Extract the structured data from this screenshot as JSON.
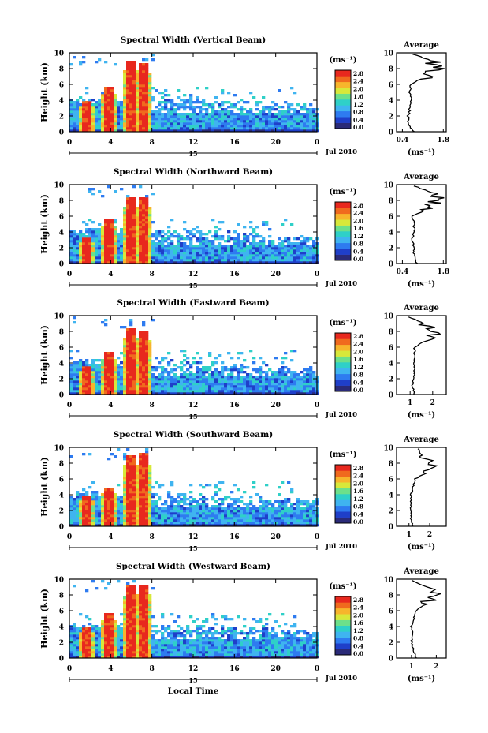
{
  "figure": {
    "panels": [
      {
        "title": "Spectral Width (Vertical Beam)"
      },
      {
        "title": "Spectral Width (Northward Beam)"
      },
      {
        "title": "Spectral Width (Eastward Beam)"
      },
      {
        "title": "Spectral Width (Southward Beam)"
      },
      {
        "title": "Spectral Width (Westward Beam)"
      }
    ],
    "ylabel": "Height (km)",
    "xlabel": "Local Time",
    "date_label": "Jul 2010",
    "day_label": "15",
    "colorbar_unit": "(ms⁻¹)",
    "colorbar_ticks": [
      "0.0",
      "0.4",
      "0.8",
      "1.2",
      "1.6",
      "2.0",
      "2.4",
      "2.8"
    ],
    "x_ticks": [
      "0",
      "4",
      "8",
      "12",
      "16",
      "20",
      "0"
    ],
    "y_ticks": [
      "0",
      "2",
      "4",
      "6",
      "8",
      "10"
    ],
    "avg_title": "Average",
    "avg_xlabel": "(ms⁻¹)",
    "avg_ticks": [
      [
        "0.4",
        "1.8"
      ],
      [
        "0.4",
        "1.8"
      ],
      [
        "1",
        "2"
      ],
      [
        "1",
        "2"
      ],
      [
        "1",
        "2"
      ]
    ],
    "colors": {
      "colormap": [
        "#2a2a78",
        "#1f3fc9",
        "#2e7bf0",
        "#3fb4f0",
        "#2fd0c8",
        "#6de08a",
        "#d8e83a",
        "#f7b52c",
        "#f06a1e",
        "#e8281e"
      ]
    }
  },
  "chart_data": [
    {
      "type": "heatmap",
      "beam": "Vertical",
      "x_range_hours": [
        0,
        24
      ],
      "y_range_km": [
        0,
        10
      ],
      "value_range": [
        0.0,
        3.0
      ],
      "convective_cells": [
        {
          "time": 1.6,
          "top_km": 4.2
        },
        {
          "time": 3.6,
          "top_km": 6.0
        },
        {
          "time": 5.8,
          "top_km": 9.2
        },
        {
          "time": 7.0,
          "top_km": 9.0
        }
      ],
      "average_profile": {
        "xlim": [
          0.2,
          1.9
        ],
        "height_km": [
          0,
          1,
          2,
          3,
          4,
          5,
          6,
          7,
          8,
          9,
          10
        ],
        "width": [
          0.8,
          0.6,
          0.6,
          0.65,
          0.7,
          0.65,
          0.7,
          1.2,
          1.6,
          1.4,
          0.6
        ]
      }
    },
    {
      "type": "heatmap",
      "beam": "Northward",
      "x_range_hours": [
        0,
        24
      ],
      "y_range_km": [
        0,
        10
      ],
      "value_range": [
        0.0,
        3.0
      ],
      "convective_cells": [
        {
          "time": 1.6,
          "top_km": 3.5
        },
        {
          "time": 3.6,
          "top_km": 5.7
        },
        {
          "time": 5.8,
          "top_km": 8.5
        },
        {
          "time": 7.0,
          "top_km": 8.6
        }
      ],
      "average_profile": {
        "xlim": [
          0.2,
          1.9
        ],
        "height_km": [
          0,
          1,
          2,
          3,
          4,
          5,
          6,
          7,
          8,
          9,
          10
        ],
        "width": [
          0.9,
          0.8,
          0.8,
          0.75,
          0.8,
          0.8,
          0.75,
          1.3,
          1.6,
          1.4,
          0.7
        ]
      }
    },
    {
      "type": "heatmap",
      "beam": "Eastward",
      "x_range_hours": [
        0,
        24
      ],
      "y_range_km": [
        0,
        10
      ],
      "value_range": [
        0.0,
        3.0
      ],
      "convective_cells": [
        {
          "time": 1.6,
          "top_km": 3.8
        },
        {
          "time": 3.6,
          "top_km": 5.5
        },
        {
          "time": 5.8,
          "top_km": 8.5
        },
        {
          "time": 7.0,
          "top_km": 8.2
        }
      ],
      "average_profile": {
        "xlim": [
          0.4,
          2.6
        ],
        "height_km": [
          0,
          1,
          2,
          3,
          4,
          5,
          6,
          7,
          8,
          9,
          10
        ],
        "width": [
          1.2,
          1.1,
          1.15,
          1.2,
          1.15,
          1.2,
          1.2,
          1.8,
          2.2,
          1.6,
          0.8
        ]
      }
    },
    {
      "type": "heatmap",
      "beam": "Southward",
      "x_range_hours": [
        0,
        24
      ],
      "y_range_km": [
        0,
        10
      ],
      "value_range": [
        0.0,
        3.0
      ],
      "convective_cells": [
        {
          "time": 1.6,
          "top_km": 4.0
        },
        {
          "time": 3.6,
          "top_km": 5.0
        },
        {
          "time": 5.8,
          "top_km": 9.3
        },
        {
          "time": 7.0,
          "top_km": 9.4
        }
      ],
      "average_profile": {
        "xlim": [
          0.4,
          2.8
        ],
        "height_km": [
          0,
          1,
          2,
          3,
          4,
          5,
          6,
          7,
          8,
          9,
          10
        ],
        "width": [
          1.2,
          1.1,
          1.1,
          1.1,
          1.1,
          1.2,
          1.3,
          2.0,
          2.2,
          1.6,
          1.4
        ]
      }
    },
    {
      "type": "heatmap",
      "beam": "Westward",
      "x_range_hours": [
        0,
        24
      ],
      "y_range_km": [
        0,
        10
      ],
      "value_range": [
        0.0,
        3.0
      ],
      "convective_cells": [
        {
          "time": 1.6,
          "top_km": 4.2
        },
        {
          "time": 3.6,
          "top_km": 5.8
        },
        {
          "time": 5.8,
          "top_km": 9.4
        },
        {
          "time": 7.0,
          "top_km": 9.6
        }
      ],
      "average_profile": {
        "xlim": [
          0.4,
          2.4
        ],
        "height_km": [
          0,
          1,
          2,
          3,
          4,
          5,
          6,
          7,
          8,
          9,
          10
        ],
        "width": [
          1.2,
          1.1,
          1.0,
          1.05,
          1.0,
          1.1,
          1.2,
          1.6,
          2.0,
          1.6,
          0.9
        ]
      }
    }
  ]
}
